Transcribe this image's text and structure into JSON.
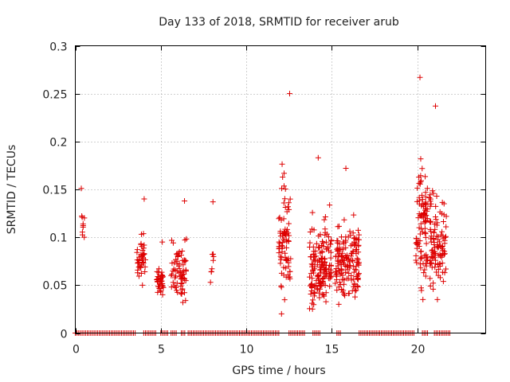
{
  "chart_data": {
    "type": "scatter",
    "title": "Day 133 of 2018, SRMTID for receiver arub",
    "xlabel": "GPS time / hours",
    "ylabel": "SRMTID / TECUs",
    "xlim": [
      0,
      24
    ],
    "ylim": [
      0,
      0.3
    ],
    "xticks": [
      0,
      5,
      10,
      15,
      20
    ],
    "yticks": [
      0,
      0.05,
      0.1,
      0.15,
      0.2,
      0.25,
      0.3
    ],
    "ytick_labels": [
      "0",
      "0.05",
      "0.1",
      "0.15",
      "0.2",
      "0.25",
      "0.3"
    ],
    "grid": true,
    "marker": "+",
    "series": [
      {
        "name": "SRMTID",
        "color": "#dd0000",
        "clusters": [
          {
            "t_start": 0.35,
            "t_end": 0.55,
            "y_min": 0.1,
            "y_max": 0.151,
            "n": 10
          },
          {
            "t_start": 3.6,
            "t_end": 4.1,
            "y_min": 0.05,
            "y_max": 0.14,
            "n": 45
          },
          {
            "t_start": 4.75,
            "t_end": 5.15,
            "y_min": 0.04,
            "y_max": 0.095,
            "n": 40
          },
          {
            "t_start": 5.6,
            "t_end": 6.5,
            "y_min": 0.032,
            "y_max": 0.138,
            "n": 70
          },
          {
            "t_start": 7.9,
            "t_end": 8.1,
            "y_min": 0.053,
            "y_max": 0.137,
            "n": 9
          },
          {
            "t_start": 11.9,
            "t_end": 12.6,
            "y_min": 0.02,
            "y_max": 0.25,
            "n": 85
          },
          {
            "t_start": 13.7,
            "t_end": 15.0,
            "y_min": 0.025,
            "y_max": 0.183,
            "n": 160
          },
          {
            "t_start": 15.2,
            "t_end": 16.6,
            "y_min": 0.03,
            "y_max": 0.172,
            "n": 160
          },
          {
            "t_start": 19.9,
            "t_end": 20.6,
            "y_min": 0.035,
            "y_max": 0.267,
            "n": 95
          },
          {
            "t_start": 20.7,
            "t_end": 21.7,
            "y_min": 0.035,
            "y_max": 0.237,
            "n": 110
          }
        ],
        "zero_spans": [
          [
            0.0,
            3.5
          ],
          [
            4.0,
            4.7
          ],
          [
            5.0,
            5.4
          ],
          [
            5.6,
            5.9
          ],
          [
            6.2,
            6.4
          ],
          [
            6.6,
            11.9
          ],
          [
            12.5,
            13.4
          ],
          [
            13.9,
            14.3
          ],
          [
            15.3,
            15.5
          ],
          [
            16.6,
            19.8
          ],
          [
            20.3,
            20.6
          ],
          [
            21.0,
            21.9
          ]
        ]
      }
    ]
  }
}
